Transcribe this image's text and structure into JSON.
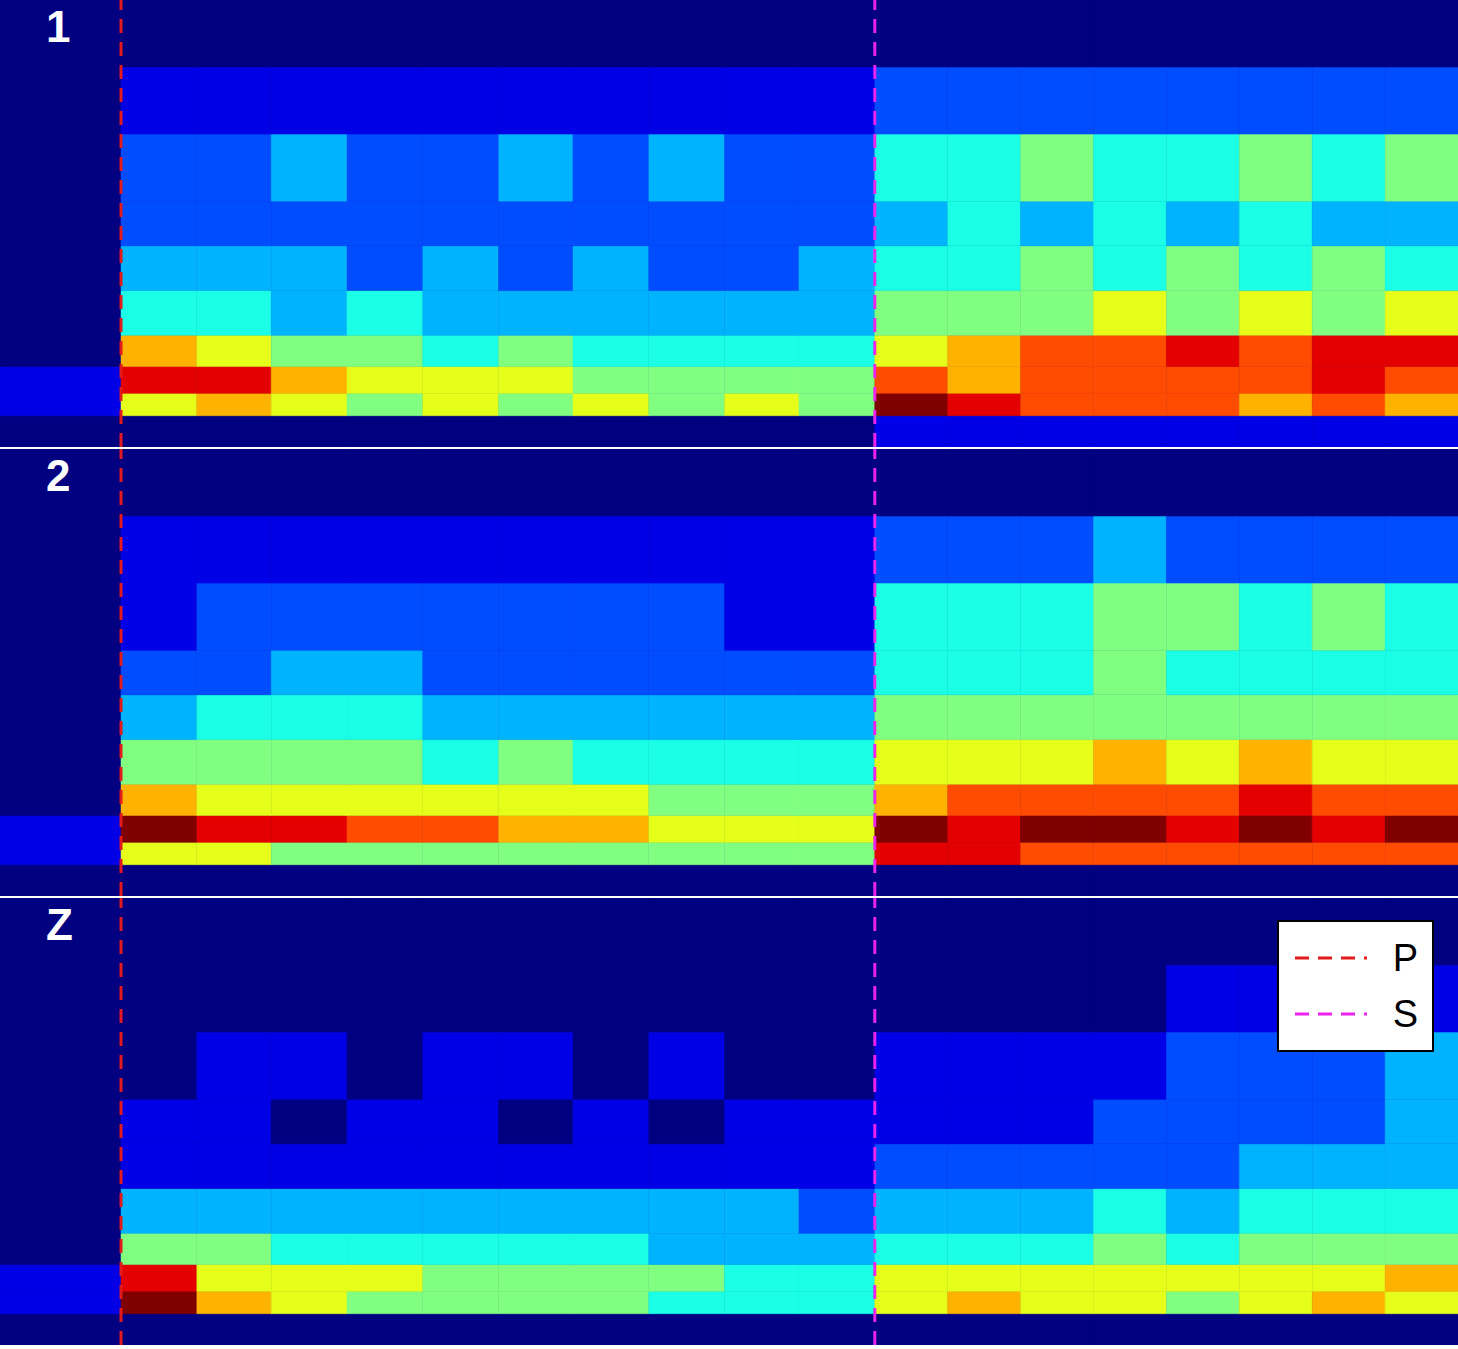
{
  "chart_data": [
    {
      "type": "heatmap",
      "title": "1",
      "xlim": [
        0,
        100
      ],
      "ylim": [
        0,
        100
      ],
      "tick_labels": false,
      "zlim": [
        0,
        10
      ],
      "x_edges": [
        0,
        8.3,
        13.5,
        18.6,
        23.8,
        29.0,
        34.2,
        39.3,
        44.5,
        49.7,
        54.8,
        60.0,
        65,
        70,
        75,
        80,
        85,
        90,
        95,
        100
      ],
      "y_edges": [
        0,
        7,
        12,
        18,
        25,
        35,
        45,
        55,
        70,
        85,
        100
      ],
      "cells": [
        [
          0,
          0,
          0,
          0,
          0,
          0,
          0,
          0,
          0,
          0,
          0,
          1,
          1,
          1,
          1,
          1,
          1,
          1,
          1
        ],
        [
          1,
          6,
          7,
          6,
          5,
          6,
          5,
          6,
          5,
          6,
          5,
          10,
          9,
          8,
          8,
          8,
          7,
          8,
          7
        ],
        [
          1,
          9,
          9,
          7,
          6,
          6,
          6,
          5,
          5,
          5,
          5,
          8,
          7,
          8,
          8,
          8,
          8,
          9,
          8
        ],
        [
          0,
          7,
          6,
          5,
          5,
          4,
          5,
          4,
          4,
          4,
          4,
          6,
          7,
          8,
          8,
          9,
          8,
          9,
          9
        ],
        [
          0,
          4,
          4,
          3,
          4,
          3,
          3,
          3,
          3,
          3,
          3,
          5,
          5,
          5,
          6,
          5,
          6,
          5,
          6
        ],
        [
          0,
          3,
          3,
          3,
          2,
          3,
          2,
          3,
          2,
          2,
          3,
          4,
          4,
          5,
          4,
          5,
          4,
          5,
          4
        ],
        [
          0,
          2,
          2,
          2,
          2,
          2,
          2,
          2,
          2,
          2,
          2,
          3,
          4,
          3,
          4,
          3,
          4,
          3,
          3
        ],
        [
          0,
          2,
          2,
          3,
          2,
          2,
          3,
          2,
          3,
          2,
          2,
          4,
          4,
          5,
          4,
          4,
          5,
          4,
          5
        ],
        [
          0,
          1,
          1,
          1,
          1,
          1,
          1,
          1,
          1,
          1,
          1,
          2,
          2,
          2,
          2,
          2,
          2,
          2,
          2
        ],
        [
          0,
          0,
          0,
          0,
          0,
          0,
          0,
          0,
          0,
          0,
          0,
          0,
          0,
          0,
          0,
          0,
          0,
          0,
          0
        ]
      ],
      "vlines": [
        {
          "name": "P",
          "x": 8.3,
          "color": "#e31a1c",
          "line_style": "dashed"
        },
        {
          "name": "S",
          "x": 60.0,
          "color": "#ee22ee",
          "line_style": "dashed"
        }
      ]
    },
    {
      "type": "heatmap",
      "title": "2",
      "xlim": [
        0,
        100
      ],
      "ylim": [
        0,
        100
      ],
      "tick_labels": false,
      "zlim": [
        0,
        10
      ],
      "x_edges": [
        0,
        8.3,
        13.5,
        18.6,
        23.8,
        29.0,
        34.2,
        39.3,
        44.5,
        49.7,
        54.8,
        60.0,
        65,
        70,
        75,
        80,
        85,
        90,
        95,
        100
      ],
      "y_edges": [
        0,
        7,
        12,
        18,
        25,
        35,
        45,
        55,
        70,
        85,
        100
      ],
      "cells": [
        [
          0,
          0,
          0,
          0,
          0,
          0,
          0,
          0,
          0,
          0,
          0,
          0,
          0,
          0,
          0,
          0,
          0,
          0,
          0
        ],
        [
          1,
          6,
          6,
          5,
          5,
          5,
          5,
          5,
          5,
          5,
          5,
          9,
          9,
          8,
          8,
          8,
          8,
          8,
          8
        ],
        [
          1,
          10,
          9,
          9,
          8,
          8,
          7,
          7,
          6,
          6,
          6,
          10,
          9,
          10,
          10,
          9,
          10,
          9,
          10
        ],
        [
          0,
          7,
          6,
          6,
          6,
          6,
          6,
          6,
          5,
          5,
          5,
          7,
          8,
          8,
          8,
          8,
          9,
          8,
          8
        ],
        [
          0,
          5,
          5,
          5,
          5,
          4,
          5,
          4,
          4,
          4,
          4,
          6,
          6,
          6,
          7,
          6,
          7,
          6,
          6
        ],
        [
          0,
          3,
          4,
          4,
          4,
          3,
          3,
          3,
          3,
          3,
          3,
          5,
          5,
          5,
          5,
          5,
          5,
          5,
          5
        ],
        [
          0,
          2,
          2,
          3,
          3,
          2,
          2,
          2,
          2,
          2,
          2,
          4,
          4,
          4,
          5,
          4,
          4,
          4,
          4
        ],
        [
          0,
          1,
          2,
          2,
          2,
          2,
          2,
          2,
          2,
          1,
          1,
          4,
          4,
          4,
          5,
          5,
          4,
          5,
          4
        ],
        [
          0,
          1,
          1,
          1,
          1,
          1,
          1,
          1,
          1,
          1,
          1,
          2,
          2,
          2,
          3,
          2,
          2,
          2,
          2
        ],
        [
          0,
          0,
          0,
          0,
          0,
          0,
          0,
          0,
          0,
          0,
          0,
          0,
          0,
          0,
          0,
          0,
          0,
          0,
          0
        ]
      ],
      "vlines": [
        {
          "name": "P",
          "x": 8.3,
          "color": "#e31a1c",
          "line_style": "dashed"
        },
        {
          "name": "S",
          "x": 60.0,
          "color": "#ee22ee",
          "line_style": "dashed"
        }
      ]
    },
    {
      "type": "heatmap",
      "title": "Z",
      "xlim": [
        0,
        100
      ],
      "ylim": [
        0,
        100
      ],
      "tick_labels": false,
      "zlim": [
        0,
        10
      ],
      "legend": "upper right",
      "x_edges": [
        0,
        8.3,
        13.5,
        18.6,
        23.8,
        29.0,
        34.2,
        39.3,
        44.5,
        49.7,
        54.8,
        60.0,
        65,
        70,
        75,
        80,
        85,
        90,
        95,
        100
      ],
      "y_edges": [
        0,
        7,
        12,
        18,
        25,
        35,
        45,
        55,
        70,
        85,
        100
      ],
      "cells": [
        [
          0,
          0,
          0,
          0,
          0,
          0,
          0,
          0,
          0,
          0,
          0,
          0,
          0,
          0,
          0,
          0,
          0,
          0,
          0
        ],
        [
          1,
          10,
          7,
          6,
          5,
          5,
          5,
          5,
          4,
          4,
          4,
          6,
          7,
          6,
          6,
          5,
          6,
          7,
          6
        ],
        [
          1,
          9,
          6,
          6,
          6,
          5,
          5,
          5,
          5,
          4,
          4,
          6,
          6,
          6,
          6,
          6,
          6,
          6,
          7
        ],
        [
          0,
          5,
          5,
          4,
          4,
          4,
          4,
          4,
          3,
          3,
          3,
          4,
          4,
          4,
          5,
          4,
          5,
          5,
          5
        ],
        [
          0,
          3,
          3,
          3,
          3,
          3,
          3,
          3,
          3,
          3,
          2,
          3,
          3,
          3,
          4,
          3,
          4,
          4,
          4
        ],
        [
          0,
          1,
          1,
          1,
          1,
          1,
          1,
          1,
          1,
          1,
          1,
          2,
          2,
          2,
          2,
          2,
          3,
          3,
          3
        ],
        [
          0,
          1,
          1,
          0,
          1,
          1,
          0,
          1,
          0,
          1,
          1,
          1,
          1,
          1,
          2,
          2,
          2,
          2,
          3
        ],
        [
          0,
          0,
          1,
          1,
          0,
          1,
          1,
          0,
          1,
          0,
          0,
          1,
          1,
          1,
          1,
          2,
          2,
          2,
          3
        ],
        [
          0,
          0,
          0,
          0,
          0,
          0,
          0,
          0,
          0,
          0,
          0,
          0,
          0,
          0,
          0,
          1,
          1,
          1,
          1
        ],
        [
          0,
          0,
          0,
          0,
          0,
          0,
          0,
          0,
          0,
          0,
          0,
          0,
          0,
          0,
          0,
          0,
          0,
          0,
          0
        ]
      ],
      "vlines": [
        {
          "name": "P",
          "x": 8.3,
          "color": "#e31a1c",
          "line_style": "dashed"
        },
        {
          "name": "S",
          "x": 60.0,
          "color": "#ee22ee",
          "line_style": "dashed"
        }
      ]
    }
  ]
}
